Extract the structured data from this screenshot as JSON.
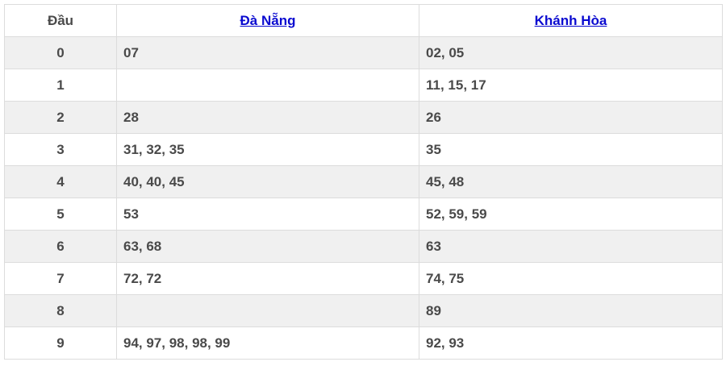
{
  "table": {
    "headers": {
      "dau": "Đầu",
      "col1": "Đà Nẵng",
      "col2": "Khánh Hòa"
    },
    "link_color": "#0a0ad0",
    "rows": [
      {
        "dau": "0",
        "col1": "07",
        "col2": "02, 05"
      },
      {
        "dau": "1",
        "col1": "",
        "col2": "11, 15, 17"
      },
      {
        "dau": "2",
        "col1": "28",
        "col2": "26"
      },
      {
        "dau": "3",
        "col1": "31, 32, 35",
        "col2": "35"
      },
      {
        "dau": "4",
        "col1": "40, 40, 45",
        "col2": "45, 48"
      },
      {
        "dau": "5",
        "col1": "53",
        "col2": "52, 59, 59"
      },
      {
        "dau": "6",
        "col1": "63, 68",
        "col2": "63"
      },
      {
        "dau": "7",
        "col1": "72, 72",
        "col2": "74, 75"
      },
      {
        "dau": "8",
        "col1": "",
        "col2": "89"
      },
      {
        "dau": "9",
        "col1": "94, 97, 98, 98, 99",
        "col2": "92, 93"
      }
    ]
  }
}
